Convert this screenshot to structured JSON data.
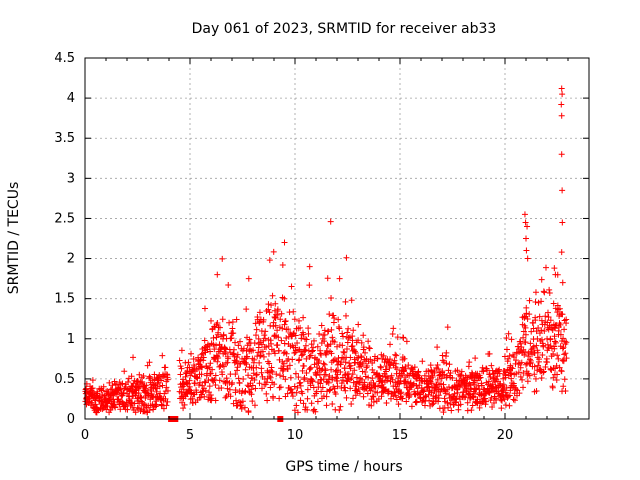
{
  "chart_data": {
    "type": "scatter",
    "title": "Day 061 of 2023, SRMTID for receiver ab33",
    "xlabel": "GPS time / hours",
    "ylabel": "SRMTID / TECUs",
    "xlim": [
      0,
      24
    ],
    "ylim": [
      0,
      4.5
    ],
    "x_ticks": [
      0,
      5,
      10,
      15,
      20
    ],
    "x_tick_labels": [
      "0",
      "5",
      "10",
      "15",
      "20"
    ],
    "y_ticks": [
      0,
      0.5,
      1,
      1.5,
      2,
      2.5,
      3,
      3.5,
      4,
      4.5
    ],
    "y_tick_labels": [
      "0",
      "0.5",
      "1",
      "1.5",
      "2",
      "2.5",
      "3",
      "3.5",
      "4",
      "4.5"
    ],
    "grid": true,
    "marker": "plus",
    "series_color": "#ff0000",
    "gap_markers": [
      {
        "x": 4.1,
        "y": 0
      },
      {
        "x": 4.3,
        "y": 0
      },
      {
        "x": 9.3,
        "y": 0
      }
    ],
    "envelope": [
      {
        "x": 0.0,
        "base": 0.3,
        "spread": 0.2
      },
      {
        "x": 0.5,
        "base": 0.2,
        "spread": 0.15
      },
      {
        "x": 1.0,
        "base": 0.25,
        "spread": 0.15
      },
      {
        "x": 2.0,
        "base": 0.3,
        "spread": 0.2
      },
      {
        "x": 3.0,
        "base": 0.3,
        "spread": 0.25
      },
      {
        "x": 3.8,
        "base": 0.4,
        "spread": 0.25
      },
      {
        "x": 4.6,
        "base": 0.4,
        "spread": 0.25
      },
      {
        "x": 5.5,
        "base": 0.55,
        "spread": 0.35
      },
      {
        "x": 6.3,
        "base": 0.8,
        "spread": 0.5
      },
      {
        "x": 7.0,
        "base": 0.7,
        "spread": 0.5
      },
      {
        "x": 7.5,
        "base": 0.5,
        "spread": 0.45
      },
      {
        "x": 8.5,
        "base": 0.8,
        "spread": 0.6
      },
      {
        "x": 9.5,
        "base": 0.8,
        "spread": 0.65
      },
      {
        "x": 10.5,
        "base": 0.6,
        "spread": 0.55
      },
      {
        "x": 11.5,
        "base": 0.6,
        "spread": 0.6
      },
      {
        "x": 12.5,
        "base": 0.7,
        "spread": 0.5
      },
      {
        "x": 13.5,
        "base": 0.5,
        "spread": 0.3
      },
      {
        "x": 15.0,
        "base": 0.5,
        "spread": 0.3
      },
      {
        "x": 16.0,
        "base": 0.4,
        "spread": 0.25
      },
      {
        "x": 17.0,
        "base": 0.4,
        "spread": 0.3
      },
      {
        "x": 18.0,
        "base": 0.35,
        "spread": 0.25
      },
      {
        "x": 19.5,
        "base": 0.4,
        "spread": 0.25
      },
      {
        "x": 20.5,
        "base": 0.5,
        "spread": 0.3
      },
      {
        "x": 21.0,
        "base": 0.9,
        "spread": 0.6
      },
      {
        "x": 22.0,
        "base": 0.9,
        "spread": 0.5
      },
      {
        "x": 22.9,
        "base": 0.9,
        "spread": 0.5
      }
    ],
    "outliers": [
      {
        "x": 8.8,
        "y": 1.98
      },
      {
        "x": 9.5,
        "y": 2.2
      },
      {
        "x": 9.42,
        "y": 1.92
      },
      {
        "x": 10.7,
        "y": 1.9
      },
      {
        "x": 11.7,
        "y": 2.46
      },
      {
        "x": 12.45,
        "y": 2.01
      },
      {
        "x": 6.3,
        "y": 1.8
      },
      {
        "x": 7.8,
        "y": 1.75
      },
      {
        "x": 20.95,
        "y": 2.55
      },
      {
        "x": 20.98,
        "y": 2.45
      },
      {
        "x": 21.05,
        "y": 2.4
      },
      {
        "x": 21.0,
        "y": 2.25
      },
      {
        "x": 21.02,
        "y": 2.1
      },
      {
        "x": 21.08,
        "y": 2.0
      },
      {
        "x": 22.35,
        "y": 1.88
      },
      {
        "x": 22.4,
        "y": 1.8
      },
      {
        "x": 22.7,
        "y": 4.12
      },
      {
        "x": 22.72,
        "y": 4.05
      },
      {
        "x": 22.68,
        "y": 3.92
      },
      {
        "x": 22.7,
        "y": 3.78
      },
      {
        "x": 22.7,
        "y": 3.3
      },
      {
        "x": 22.72,
        "y": 2.85
      },
      {
        "x": 22.73,
        "y": 2.45
      },
      {
        "x": 22.7,
        "y": 2.08
      },
      {
        "x": 22.75,
        "y": 1.7
      }
    ]
  }
}
